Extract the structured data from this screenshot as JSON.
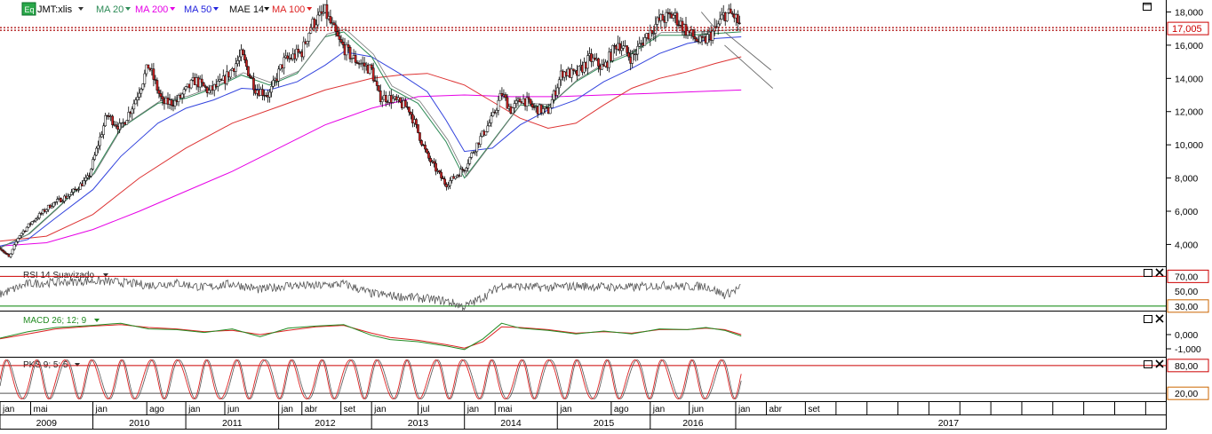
{
  "header": {
    "eq_badge": "Eq",
    "symbol": "JMT:xlis",
    "indicators": [
      {
        "label": "MA 20",
        "color": "#2e8b57"
      },
      {
        "label": "MA 200",
        "color": "#e600e6"
      },
      {
        "label": "MA 50",
        "color": "#2222dd"
      },
      {
        "label": "MAE 14",
        "color": "#111111"
      },
      {
        "label": "MA 100",
        "color": "#dd2222"
      }
    ]
  },
  "colors": {
    "ma20": "#2e8b57",
    "ma200": "#e600e6",
    "ma50": "#3344dd",
    "mae14": "#222222",
    "ma100": "#dd3333",
    "up_candle": "#ffffff",
    "down_candle": "#cc2222",
    "trend": "#666666",
    "rsi": "#555555",
    "macd": "#228b22",
    "signal": "#dd2222",
    "upper_line": "#cc0000",
    "lower_line": "#008000"
  },
  "chart_data": [
    {
      "type": "line",
      "panel": "price",
      "last_price_label": "17,005",
      "last_price": 17.005,
      "ylim": [
        2.9,
        18.4
      ],
      "ticks": [
        {
          "v": 4,
          "label": "4,000"
        },
        {
          "v": 6,
          "label": "6,000"
        },
        {
          "v": 8,
          "label": "8,000"
        },
        {
          "v": 10,
          "label": "10,000"
        },
        {
          "v": 12,
          "label": "12,000"
        },
        {
          "v": 14,
          "label": "14,000"
        },
        {
          "v": 16,
          "label": "16,000"
        },
        {
          "v": 18,
          "label": "18,000"
        }
      ],
      "price_path_t": [
        2009.0,
        2009.1,
        2009.2,
        2009.35,
        2009.55,
        2009.75,
        2009.95,
        2010.15,
        2010.3,
        2010.45,
        2010.6,
        2010.75,
        2010.9,
        2011.1,
        2011.25,
        2011.4,
        2011.6,
        2011.75,
        2011.9,
        2012.05,
        2012.25,
        2012.35,
        2012.5,
        2012.65,
        2012.8,
        2013.0,
        2013.08,
        2013.2,
        2013.4,
        2013.6,
        2013.8,
        2014.0,
        2014.15,
        2014.3,
        2014.4,
        2014.5,
        2014.62,
        2014.75,
        2014.9,
        2015.05,
        2015.2,
        2015.35,
        2015.5,
        2015.65,
        2015.8,
        2015.95,
        2016.1,
        2016.25,
        2016.4,
        2016.55,
        2016.7,
        2016.8,
        2016.9,
        2016.98
      ],
      "price_path_v": [
        3.8,
        3.2,
        4.5,
        5.4,
        6.4,
        7.0,
        8.0,
        11.8,
        11.0,
        12.6,
        14.8,
        12.5,
        12.6,
        13.9,
        13.2,
        13.8,
        15.4,
        13.4,
        13.0,
        15.0,
        15.6,
        17.2,
        18.0,
        16.2,
        15.2,
        14.5,
        12.9,
        12.8,
        12.2,
        9.3,
        7.6,
        8.6,
        10.2,
        11.6,
        13.1,
        12.1,
        12.8,
        12.2,
        12.0,
        14.4,
        14.2,
        15.2,
        14.6,
        16.2,
        15.2,
        16.5,
        17.5,
        17.8,
        16.8,
        16.1,
        16.9,
        17.9,
        17.8,
        17.0
      ],
      "ma20_t": [
        2009.0,
        2009.3,
        2009.6,
        2010.0,
        2010.3,
        2010.7,
        2011.0,
        2011.3,
        2011.6,
        2011.9,
        2012.2,
        2012.5,
        2012.7,
        2013.0,
        2013.2,
        2013.5,
        2013.8,
        2014.0,
        2014.3,
        2014.6,
        2014.9,
        2015.2,
        2015.5,
        2015.8,
        2016.1,
        2016.4,
        2016.7,
        2016.98
      ],
      "ma20_v": [
        3.8,
        4.6,
        6.1,
        8.2,
        11.0,
        12.5,
        12.8,
        13.4,
        14.2,
        13.6,
        14.3,
        16.5,
        16.8,
        15.3,
        13.4,
        12.5,
        10.2,
        8.0,
        10.2,
        12.4,
        12.3,
        13.8,
        14.8,
        15.5,
        16.6,
        16.6,
        16.7,
        16.8
      ],
      "ma50_t": [
        2009.0,
        2009.3,
        2009.6,
        2010.0,
        2010.3,
        2010.7,
        2011.0,
        2011.3,
        2011.6,
        2011.9,
        2012.2,
        2012.5,
        2012.7,
        2013.0,
        2013.3,
        2013.6,
        2013.8,
        2014.0,
        2014.3,
        2014.6,
        2014.9,
        2015.2,
        2015.5,
        2015.8,
        2016.1,
        2016.4,
        2016.7,
        2016.98
      ],
      "ma50_v": [
        3.9,
        4.3,
        5.6,
        7.3,
        9.3,
        11.3,
        12.2,
        12.7,
        13.4,
        13.3,
        13.8,
        14.8,
        15.6,
        15.3,
        14.3,
        13.2,
        11.5,
        9.6,
        9.8,
        11.2,
        12.1,
        12.7,
        13.8,
        14.6,
        15.5,
        16.1,
        16.4,
        16.5
      ],
      "ma100_t": [
        2009.0,
        2009.5,
        2010.0,
        2010.5,
        2011.0,
        2011.5,
        2012.0,
        2012.5,
        2013.0,
        2013.3,
        2013.6,
        2014.0,
        2014.3,
        2014.6,
        2014.9,
        2015.2,
        2015.5,
        2015.8,
        2016.1,
        2016.4,
        2016.7,
        2016.98
      ],
      "ma100_v": [
        4.2,
        4.5,
        5.8,
        8.0,
        9.8,
        11.3,
        12.3,
        13.3,
        14.0,
        14.2,
        14.3,
        13.6,
        12.6,
        11.6,
        11.0,
        11.3,
        12.4,
        13.4,
        14.0,
        14.4,
        14.9,
        15.3
      ],
      "ma200_t": [
        2009.0,
        2009.5,
        2010.0,
        2010.5,
        2011.0,
        2011.5,
        2012.0,
        2012.5,
        2013.0,
        2013.5,
        2014.0,
        2014.5,
        2015.0,
        2015.5,
        2016.0,
        2016.5,
        2016.98
      ],
      "ma200_v": [
        3.9,
        4.1,
        4.9,
        6.0,
        7.2,
        8.4,
        9.8,
        11.2,
        12.2,
        12.9,
        13.0,
        12.9,
        12.9,
        13.0,
        13.1,
        13.2,
        13.3
      ],
      "trendlines": [
        {
          "t1": 2016.55,
          "v1": 18.0,
          "t2": 2016.7,
          "v2": 17.0
        },
        {
          "t1": 2016.8,
          "v1": 16.8,
          "t2": 2017.3,
          "v2": 14.5
        },
        {
          "t1": 2016.8,
          "v1": 16.0,
          "t2": 2017.32,
          "v2": 13.4
        }
      ]
    },
    {
      "type": "line",
      "panel": "rsi",
      "label": "RSI 14 Suavizado",
      "ylim": [
        25,
        80
      ],
      "levels": [
        70,
        30
      ],
      "ticks": [
        {
          "v": 70,
          "label": "70,00"
        },
        {
          "v": 50,
          "label": "50,00"
        },
        {
          "v": 30,
          "label": "30,00"
        }
      ],
      "t": [
        2009.0,
        2009.3,
        2009.6,
        2010.0,
        2010.3,
        2010.6,
        2010.9,
        2011.2,
        2011.5,
        2011.8,
        2012.1,
        2012.4,
        2012.7,
        2013.0,
        2013.2,
        2013.5,
        2013.8,
        2014.0,
        2014.2,
        2014.4,
        2014.6,
        2014.9,
        2015.2,
        2015.5,
        2015.8,
        2016.1,
        2016.4,
        2016.6,
        2016.8,
        2016.98
      ],
      "v": [
        46,
        60,
        62,
        64,
        62,
        58,
        61,
        55,
        60,
        52,
        58,
        57,
        60,
        47,
        44,
        41,
        37,
        29,
        42,
        58,
        56,
        55,
        57,
        56,
        55,
        58,
        56,
        57,
        45,
        55
      ]
    },
    {
      "type": "line",
      "panel": "macd",
      "label": "MACD 26; 12; 9",
      "ylim": [
        -1.5,
        1.5
      ],
      "ticks": [
        {
          "v": 0,
          "label": "0,000"
        },
        {
          "v": -1,
          "label": "-1,000"
        }
      ],
      "t": [
        2009.0,
        2009.3,
        2009.6,
        2010.0,
        2010.3,
        2010.6,
        2010.9,
        2011.2,
        2011.5,
        2011.8,
        2012.1,
        2012.4,
        2012.7,
        2013.0,
        2013.2,
        2013.5,
        2013.8,
        2014.0,
        2014.2,
        2014.4,
        2014.6,
        2014.9,
        2015.2,
        2015.5,
        2015.8,
        2016.1,
        2016.4,
        2016.6,
        2016.8,
        2016.98
      ],
      "macd": [
        -0.25,
        0.2,
        0.5,
        0.65,
        0.8,
        0.4,
        0.35,
        0.15,
        0.4,
        -0.15,
        0.45,
        0.6,
        0.7,
        -0.05,
        -0.35,
        -0.5,
        -0.8,
        -1.05,
        -0.3,
        0.8,
        0.45,
        0.3,
        0.05,
        0.25,
        0.05,
        0.4,
        0.35,
        0.5,
        0.3,
        -0.1
      ],
      "signal": [
        -0.3,
        0.05,
        0.4,
        0.6,
        0.7,
        0.5,
        0.4,
        0.2,
        0.3,
        0.0,
        0.3,
        0.55,
        0.65,
        0.1,
        -0.2,
        -0.4,
        -0.7,
        -0.95,
        -0.5,
        0.55,
        0.5,
        0.35,
        0.1,
        0.2,
        0.1,
        0.35,
        0.35,
        0.45,
        0.35,
        0.0
      ]
    },
    {
      "type": "line",
      "panel": "pks",
      "label": "PKS 9; 5; 5",
      "ylim": [
        5,
        95
      ],
      "levels": [
        80,
        20
      ],
      "ticks": [
        {
          "v": 80,
          "label": "80,00"
        },
        {
          "v": 20,
          "label": "20,00"
        }
      ],
      "cycles": 26
    }
  ],
  "time_axis": {
    "months": [
      {
        "t": 2009.0,
        "label": "jan"
      },
      {
        "t": 2009.33,
        "label": "mai"
      },
      {
        "t": 2010.0,
        "label": "jan"
      },
      {
        "t": 2010.58,
        "label": "ago"
      },
      {
        "t": 2011.0,
        "label": "jan"
      },
      {
        "t": 2011.42,
        "label": "jun"
      },
      {
        "t": 2012.0,
        "label": "jan"
      },
      {
        "t": 2012.25,
        "label": "abr"
      },
      {
        "t": 2012.67,
        "label": "set"
      },
      {
        "t": 2013.0,
        "label": "jan"
      },
      {
        "t": 2013.5,
        "label": "jul"
      },
      {
        "t": 2014.0,
        "label": "jan"
      },
      {
        "t": 2014.33,
        "label": "mai"
      },
      {
        "t": 2015.0,
        "label": "jan"
      },
      {
        "t": 2015.58,
        "label": "ago"
      },
      {
        "t": 2016.0,
        "label": "jan"
      },
      {
        "t": 2016.42,
        "label": "jun"
      },
      {
        "t": 2016.92,
        "label": "jan"
      },
      {
        "t": 2017.25,
        "label": "abr"
      },
      {
        "t": 2017.67,
        "label": "set"
      }
    ],
    "years": [
      {
        "start": 2009.0,
        "end": 2010.0,
        "label": "2009"
      },
      {
        "start": 2010.0,
        "end": 2011.0,
        "label": "2010"
      },
      {
        "start": 2011.0,
        "end": 2012.0,
        "label": "2011"
      },
      {
        "start": 2012.0,
        "end": 2013.0,
        "label": "2012"
      },
      {
        "start": 2013.0,
        "end": 2014.0,
        "label": "2013"
      },
      {
        "start": 2014.0,
        "end": 2015.0,
        "label": "2014"
      },
      {
        "start": 2015.0,
        "end": 2016.0,
        "label": "2015"
      },
      {
        "start": 2016.0,
        "end": 2016.92,
        "label": "2016"
      },
      {
        "start": 2016.92,
        "end": 2021.5,
        "label": "2017"
      }
    ]
  }
}
